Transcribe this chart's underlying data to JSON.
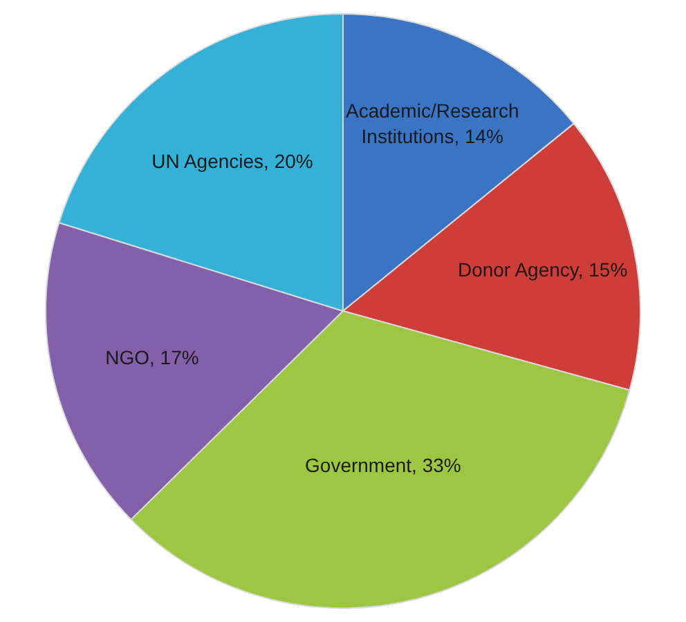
{
  "chart_data": {
    "type": "pie",
    "categories": [
      "Academic/Research Institutions",
      "Donor Agency",
      "Government",
      "NGO",
      "UN Agencies"
    ],
    "values": [
      14,
      15,
      33,
      17,
      20
    ],
    "value_labels": [
      "14%",
      "15%",
      "33%",
      "17%",
      "20%"
    ],
    "colors": [
      "#3a74c4",
      "#cf3d38",
      "#9dc743",
      "#8460aa",
      "#35b0d6"
    ],
    "legend": false
  }
}
